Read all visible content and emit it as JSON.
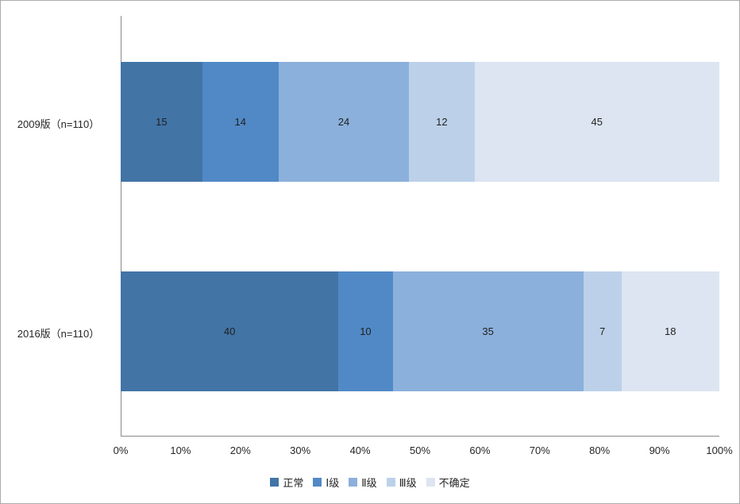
{
  "chart_data": {
    "type": "bar",
    "orientation": "horizontal",
    "stacked": true,
    "percent_stacked": true,
    "title": "",
    "xlabel": "",
    "ylabel": "",
    "categories": [
      "2009版（n=110）",
      "2016版（n=110）"
    ],
    "category_total": 110,
    "series": [
      {
        "name": "正常",
        "color": "#4274a6",
        "values": [
          15,
          40
        ]
      },
      {
        "name": "Ⅰ级",
        "color": "#5189c6",
        "values": [
          14,
          10
        ]
      },
      {
        "name": "Ⅱ级",
        "color": "#8bb0db",
        "values": [
          24,
          35
        ]
      },
      {
        "name": "Ⅲ级",
        "color": "#bcd1e9",
        "values": [
          12,
          7
        ]
      },
      {
        "name": "不确定",
        "color": "#dce5f1",
        "values": [
          45,
          18
        ]
      }
    ],
    "x_ticks": [
      "0%",
      "10%",
      "20%",
      "30%",
      "40%",
      "50%",
      "60%",
      "70%",
      "80%",
      "90%",
      "100%"
    ],
    "xlim": [
      0,
      1
    ],
    "grid": false,
    "legend": {
      "position": "bottom",
      "entries": [
        "正常",
        "Ⅰ级",
        "Ⅱ级",
        "Ⅲ级",
        "不确定"
      ]
    },
    "colors": {
      "axis_line": "#898989",
      "chart_border": "#ababab",
      "text": "#262626",
      "data_label_text": "#1f1f1f",
      "background": "#ffffff"
    }
  }
}
